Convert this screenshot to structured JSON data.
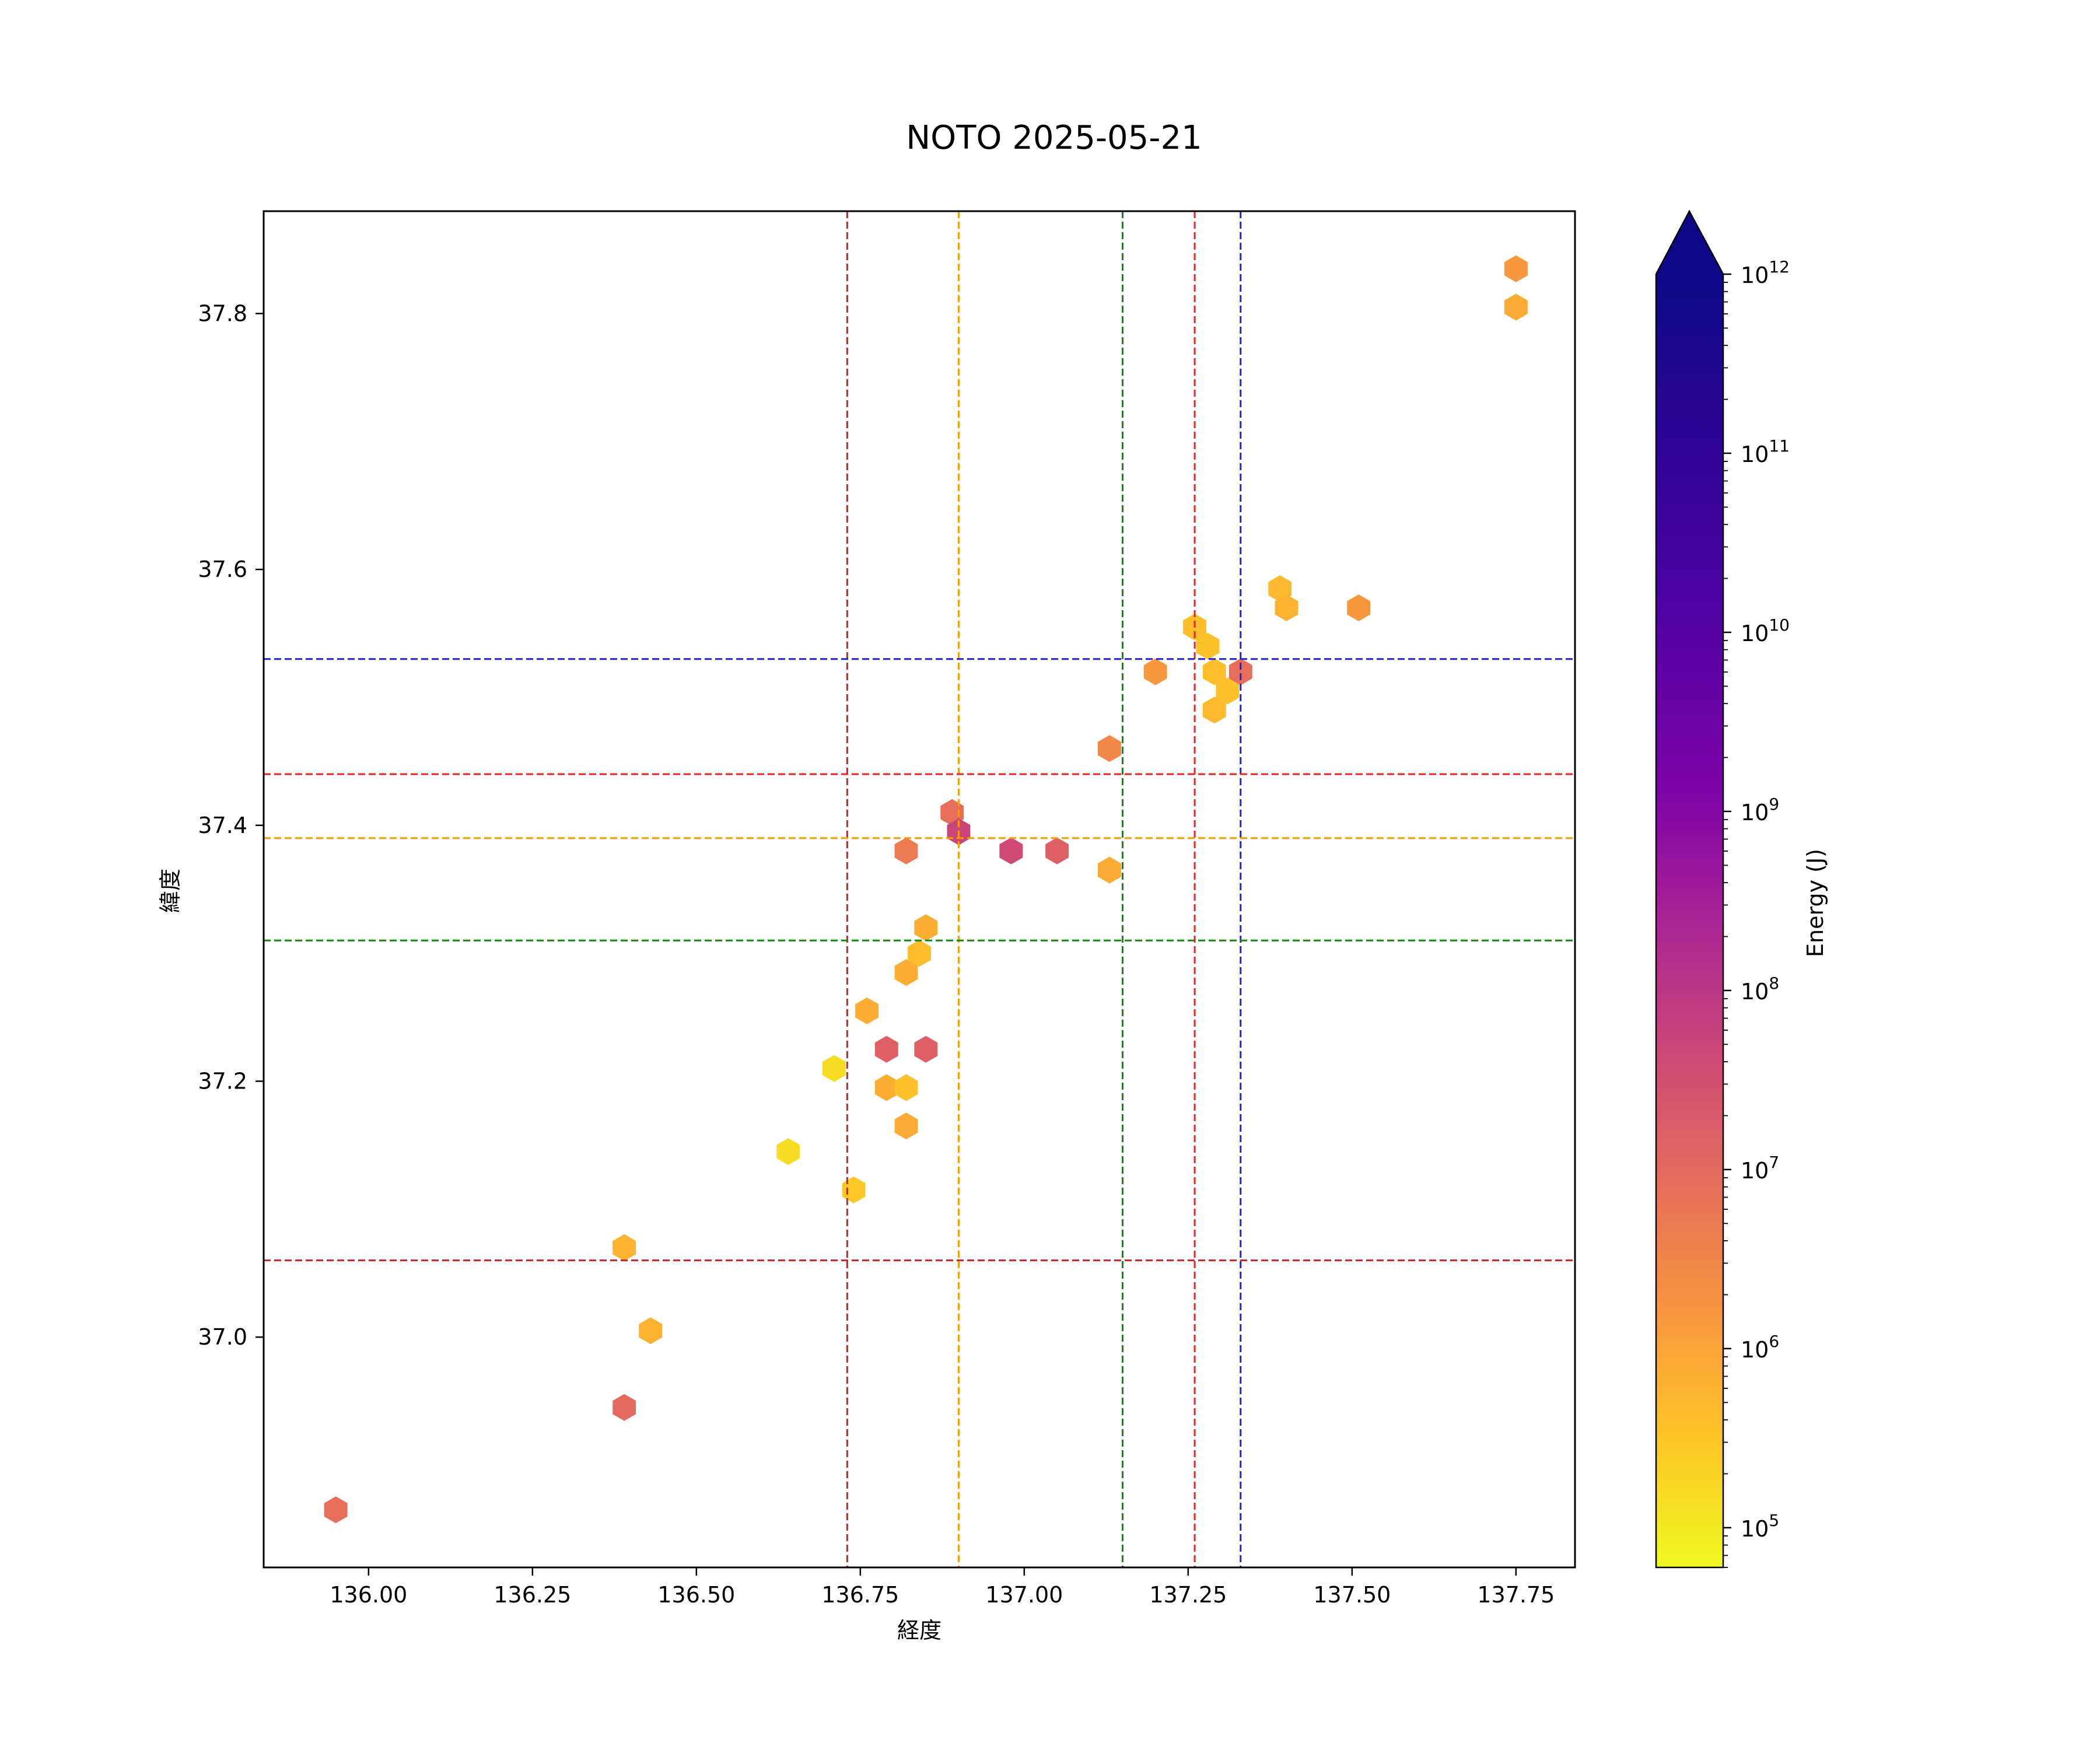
{
  "chart_data": {
    "type": "hexbin",
    "title": "NOTO 2025-05-21",
    "xlabel": "経度",
    "ylabel": "緯度",
    "xlim": [
      135.84,
      137.84
    ],
    "ylim": [
      36.82,
      37.88
    ],
    "xticks": [
      136.0,
      136.25,
      136.5,
      136.75,
      137.0,
      137.25,
      137.5,
      137.75
    ],
    "xtick_labels": [
      "136.00",
      "136.25",
      "136.50",
      "136.75",
      "137.00",
      "137.25",
      "137.50",
      "137.75"
    ],
    "yticks": [
      37.0,
      37.2,
      37.4,
      37.6,
      37.8
    ],
    "ytick_labels": [
      "37.0",
      "37.2",
      "37.4",
      "37.6",
      "37.8"
    ],
    "grid": false,
    "colorbar": {
      "label": "Energy (J)",
      "scale": "log",
      "colormap": "plasma_r",
      "extend": "max",
      "range": [
        60000,
        1000000000000
      ],
      "ticks": [
        100000,
        1000000,
        10000000,
        100000000,
        1000000000,
        10000000000,
        100000000000,
        1000000000000
      ],
      "tick_bases": [
        "10",
        "10",
        "10",
        "10",
        "10",
        "10",
        "10",
        "10"
      ],
      "tick_exponents": [
        "5",
        "6",
        "7",
        "8",
        "9",
        "10",
        "11",
        "12"
      ]
    },
    "vertical_lines": [
      {
        "x": 136.73,
        "color": "#cc2222"
      },
      {
        "x": 136.9,
        "color": "#ff9900"
      },
      {
        "x": 137.15,
        "color": "#118811"
      },
      {
        "x": 137.26,
        "color": "#ee2222"
      },
      {
        "x": 137.33,
        "color": "#2222cc"
      }
    ],
    "horizontal_lines": [
      {
        "y": 37.53,
        "color": "#2222cc"
      },
      {
        "y": 37.44,
        "color": "#ee2222"
      },
      {
        "y": 37.39,
        "color": "#ff9900"
      },
      {
        "y": 37.31,
        "color": "#118811"
      },
      {
        "y": 37.06,
        "color": "#cc2222"
      }
    ],
    "points": [
      {
        "x": 137.75,
        "y": 37.835,
        "energy": 1500000
      },
      {
        "x": 137.75,
        "y": 37.805,
        "energy": 800000
      },
      {
        "x": 137.39,
        "y": 37.585,
        "energy": 500000
      },
      {
        "x": 137.4,
        "y": 37.57,
        "energy": 600000
      },
      {
        "x": 137.51,
        "y": 37.57,
        "energy": 1500000
      },
      {
        "x": 137.26,
        "y": 37.555,
        "energy": 400000
      },
      {
        "x": 137.28,
        "y": 37.54,
        "energy": 350000
      },
      {
        "x": 137.29,
        "y": 37.52,
        "energy": 400000
      },
      {
        "x": 137.31,
        "y": 37.505,
        "energy": 350000
      },
      {
        "x": 137.33,
        "y": 37.52,
        "energy": 8000000
      },
      {
        "x": 137.29,
        "y": 37.49,
        "energy": 500000
      },
      {
        "x": 137.2,
        "y": 37.52,
        "energy": 1500000
      },
      {
        "x": 137.13,
        "y": 37.46,
        "energy": 3000000
      },
      {
        "x": 136.89,
        "y": 37.41,
        "energy": 8000000
      },
      {
        "x": 136.9,
        "y": 37.395,
        "energy": 50000000
      },
      {
        "x": 136.82,
        "y": 37.38,
        "energy": 5000000
      },
      {
        "x": 136.98,
        "y": 37.38,
        "energy": 40000000
      },
      {
        "x": 137.05,
        "y": 37.38,
        "energy": 15000000
      },
      {
        "x": 137.13,
        "y": 37.365,
        "energy": 800000
      },
      {
        "x": 136.85,
        "y": 37.32,
        "energy": 700000
      },
      {
        "x": 136.84,
        "y": 37.3,
        "energy": 400000
      },
      {
        "x": 136.82,
        "y": 37.285,
        "energy": 700000
      },
      {
        "x": 136.76,
        "y": 37.255,
        "energy": 700000
      },
      {
        "x": 136.79,
        "y": 37.225,
        "energy": 15000000
      },
      {
        "x": 136.85,
        "y": 37.225,
        "energy": 15000000
      },
      {
        "x": 136.71,
        "y": 37.21,
        "energy": 150000
      },
      {
        "x": 136.79,
        "y": 37.195,
        "energy": 700000
      },
      {
        "x": 136.82,
        "y": 37.195,
        "energy": 350000
      },
      {
        "x": 136.82,
        "y": 37.165,
        "energy": 800000
      },
      {
        "x": 136.64,
        "y": 37.145,
        "energy": 150000
      },
      {
        "x": 136.74,
        "y": 37.115,
        "energy": 300000
      },
      {
        "x": 136.39,
        "y": 37.07,
        "energy": 600000
      },
      {
        "x": 136.43,
        "y": 37.005,
        "energy": 600000
      },
      {
        "x": 136.39,
        "y": 36.945,
        "energy": 10000000
      },
      {
        "x": 135.95,
        "y": 36.865,
        "energy": 8000000
      }
    ]
  }
}
